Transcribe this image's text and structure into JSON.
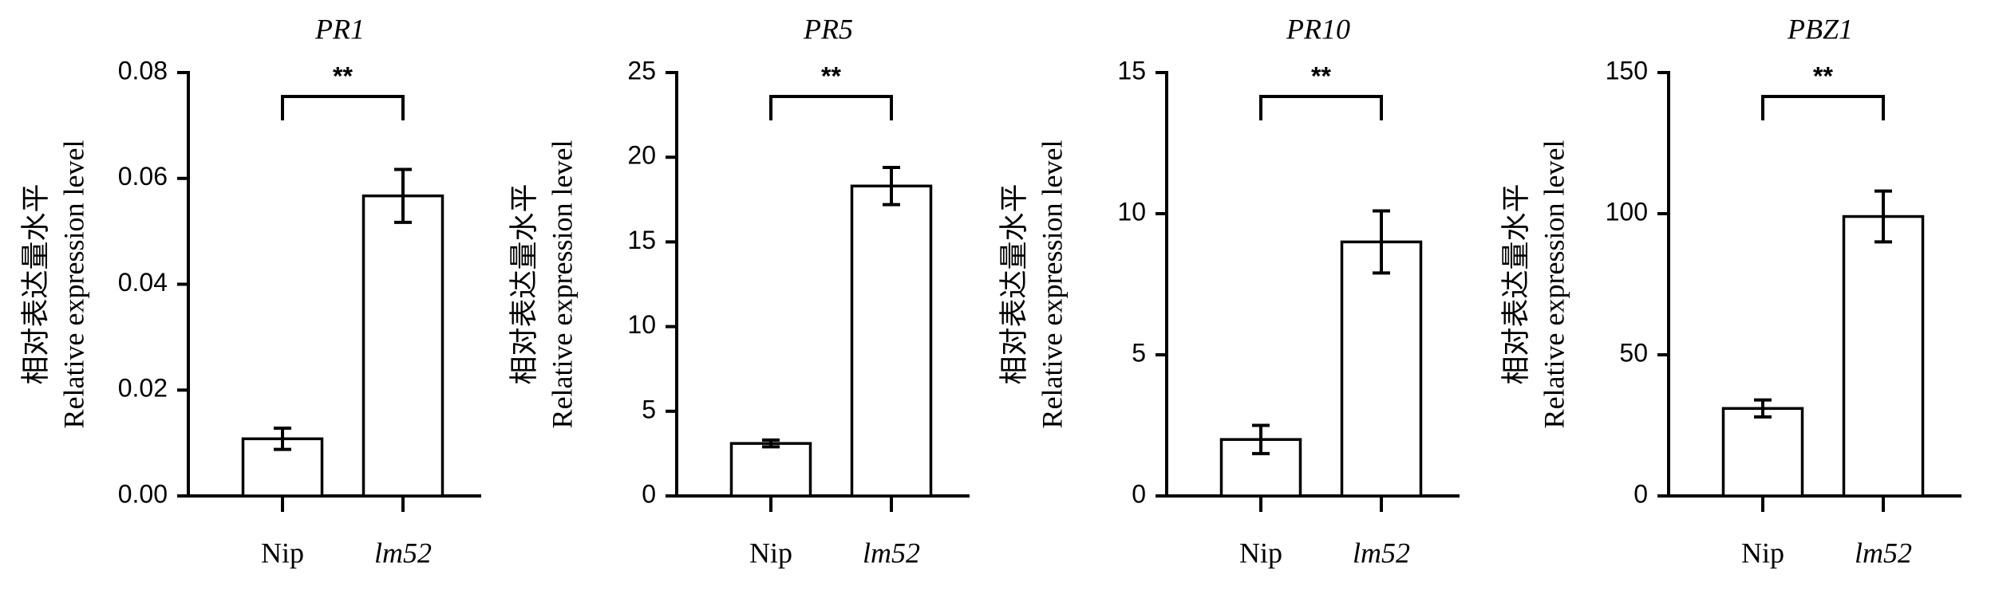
{
  "chart_data": [
    {
      "type": "bar",
      "title": "PR1",
      "ylabel": [
        "相对表达量水平",
        "Relative expression level"
      ],
      "annotation": "**",
      "categories": [
        "Nip",
        "lm52"
      ],
      "values": [
        0.0108,
        0.0567
      ],
      "errors": [
        0.002,
        0.005
      ],
      "color": "#ffffff",
      "edgecolor": "#000000",
      "ylim": [
        0,
        0.08
      ],
      "yticks": [
        {
          "value": 0,
          "label": "0.00"
        },
        0.02,
        0.04,
        0.06,
        0.08
      ]
    },
    {
      "type": "bar",
      "title": "PR5",
      "ylabel": [
        "相对表达量水平",
        "Relative expression level"
      ],
      "annotation": "**",
      "categories": [
        "Nip",
        "lm52"
      ],
      "values": [
        3.1,
        18.3
      ],
      "errors": [
        0.2,
        1.1
      ],
      "color": "#ffffff",
      "edgecolor": "#000000",
      "ylim": [
        0,
        25
      ],
      "yticks": [
        0,
        5,
        10,
        15,
        20,
        25
      ]
    },
    {
      "type": "bar",
      "title": "PR10",
      "ylabel": [
        "相对表达量水平",
        "Relative expression level"
      ],
      "annotation": "**",
      "categories": [
        "Nip",
        "lm52"
      ],
      "values": [
        2.0,
        9.0
      ],
      "errors": [
        0.5,
        1.1
      ],
      "color": "#ffffff",
      "edgecolor": "#000000",
      "ylim": [
        0,
        15
      ],
      "yticks": [
        0,
        5,
        10,
        15
      ]
    },
    {
      "type": "bar",
      "title": "PBZ1",
      "ylabel": [
        "相对表达量水平",
        "Relative expression level"
      ],
      "annotation": "**",
      "categories": [
        "Nip",
        "lm52"
      ],
      "values": [
        31,
        99
      ],
      "errors": [
        3,
        9
      ],
      "color": "#ffffff",
      "edgecolor": "#000000",
      "ylim": [
        0,
        150
      ],
      "yticks": [
        0,
        50,
        100,
        150
      ]
    }
  ]
}
